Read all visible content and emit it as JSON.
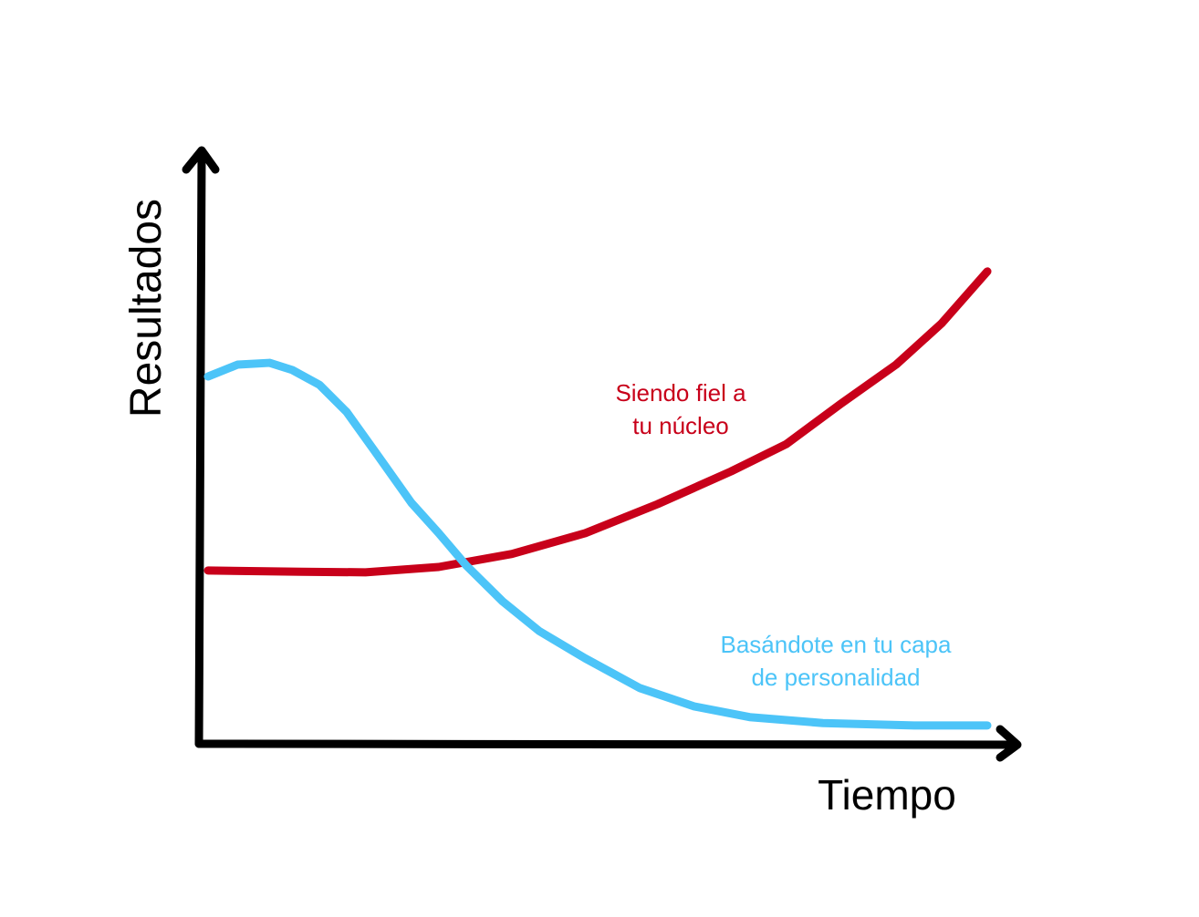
{
  "chart_data": {
    "type": "line",
    "x_label": "Tiempo",
    "y_label": "Resultados",
    "xlim": [
      0,
      100
    ],
    "ylim": [
      0,
      100
    ],
    "series": [
      {
        "label": [
          "Siendo fiel a",
          "tu núcleo"
        ],
        "color": "#c8001a",
        "x": [
          0,
          12.0,
          20.2,
          29.6,
          39.0,
          48.4,
          57.7,
          67.1,
          74.2,
          81.2,
          88.3,
          94.1,
          100
        ],
        "values": [
          29.2,
          29.0,
          28.9,
          29.8,
          32.0,
          35.5,
          40.4,
          45.9,
          50.5,
          57.3,
          63.9,
          70.8,
          79.6
        ]
      },
      {
        "label": [
          "Basándote en tu capa",
          "de personalidad"
        ],
        "color": "#4cc4f8",
        "x": [
          0,
          3.8,
          7.9,
          10.8,
          14.3,
          17.8,
          21.4,
          26.1,
          29.6,
          33.1,
          37.8,
          42.5,
          48.4,
          55.4,
          62.4,
          69.5,
          78.9,
          90.6,
          100
        ],
        "values": [
          61.9,
          63.9,
          64.2,
          63.0,
          60.5,
          55.9,
          49.3,
          40.6,
          35.5,
          30.1,
          24.0,
          19.0,
          14.4,
          9.4,
          6.3,
          4.5,
          3.5,
          3.1,
          3.1
        ]
      }
    ]
  }
}
